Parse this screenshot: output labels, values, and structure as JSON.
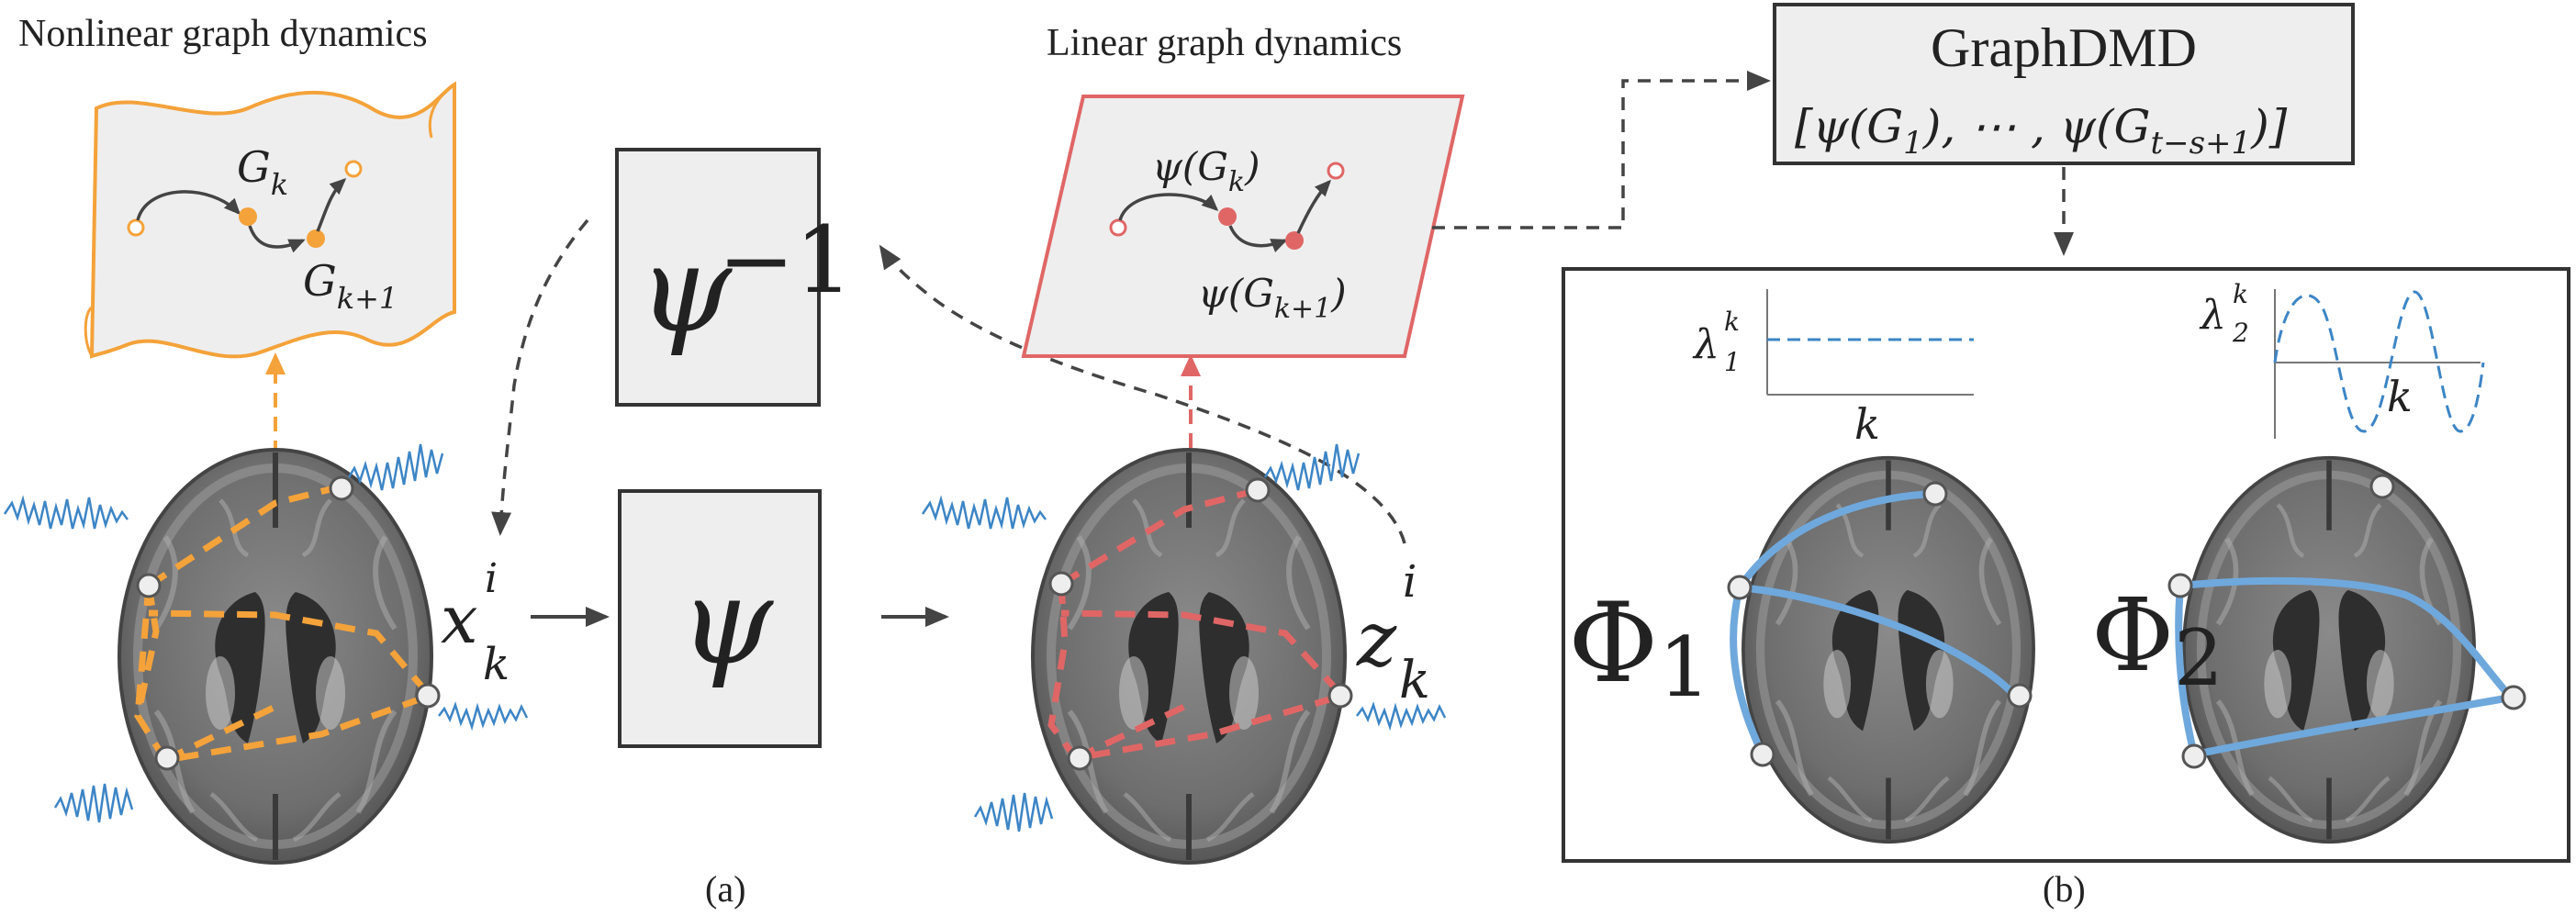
{
  "panel_a": {
    "nonlinear_title": "Nonlinear graph dynamics",
    "linear_title": "Linear graph dynamics",
    "caption": "(a)",
    "nonlinear_node_k": "G",
    "nonlinear_node_k_sub": "k",
    "nonlinear_node_k1": "G",
    "nonlinear_node_k1_sub": "k+1",
    "linear_node_k": "ψ(G",
    "linear_node_k_sub": "k",
    "linear_node_k_close": ")",
    "linear_node_k1": "ψ(G",
    "linear_node_k1_sub": "k+1",
    "linear_node_k1_close": ")",
    "inverse_map": "ψ",
    "inverse_sup": "−1",
    "forward_map": "ψ",
    "input_var": "x",
    "input_sup": "i",
    "input_sub": "k",
    "output_var": "z",
    "output_sup": "i",
    "output_sub": "k"
  },
  "panel_b": {
    "graphdmd_title": "GraphDMD",
    "graphdmd_formula": "[ψ(G",
    "graphdmd_sub1": "1",
    "graphdmd_mid": "), ⋯ , ψ(G",
    "graphdmd_sub2": "t−s+1",
    "graphdmd_end": ")]",
    "caption": "(b)",
    "mode1_label": "Φ",
    "mode1_sub": "1",
    "mode2_label": "Φ",
    "mode2_sub": "2",
    "eig1_label": "λ",
    "eig1_sub": "1",
    "eig1_sup": "k",
    "eig2_label": "λ",
    "eig2_sub": "2",
    "eig2_sup": "k",
    "axis1_label": "k",
    "axis2_label": "k"
  },
  "colors": {
    "nonlinear": "#f4a23a",
    "linear": "#e06666",
    "mode": "#6fa8dc",
    "signal": "#3d85c6",
    "box_fill": "#eeeeee",
    "stroke": "#333333"
  }
}
